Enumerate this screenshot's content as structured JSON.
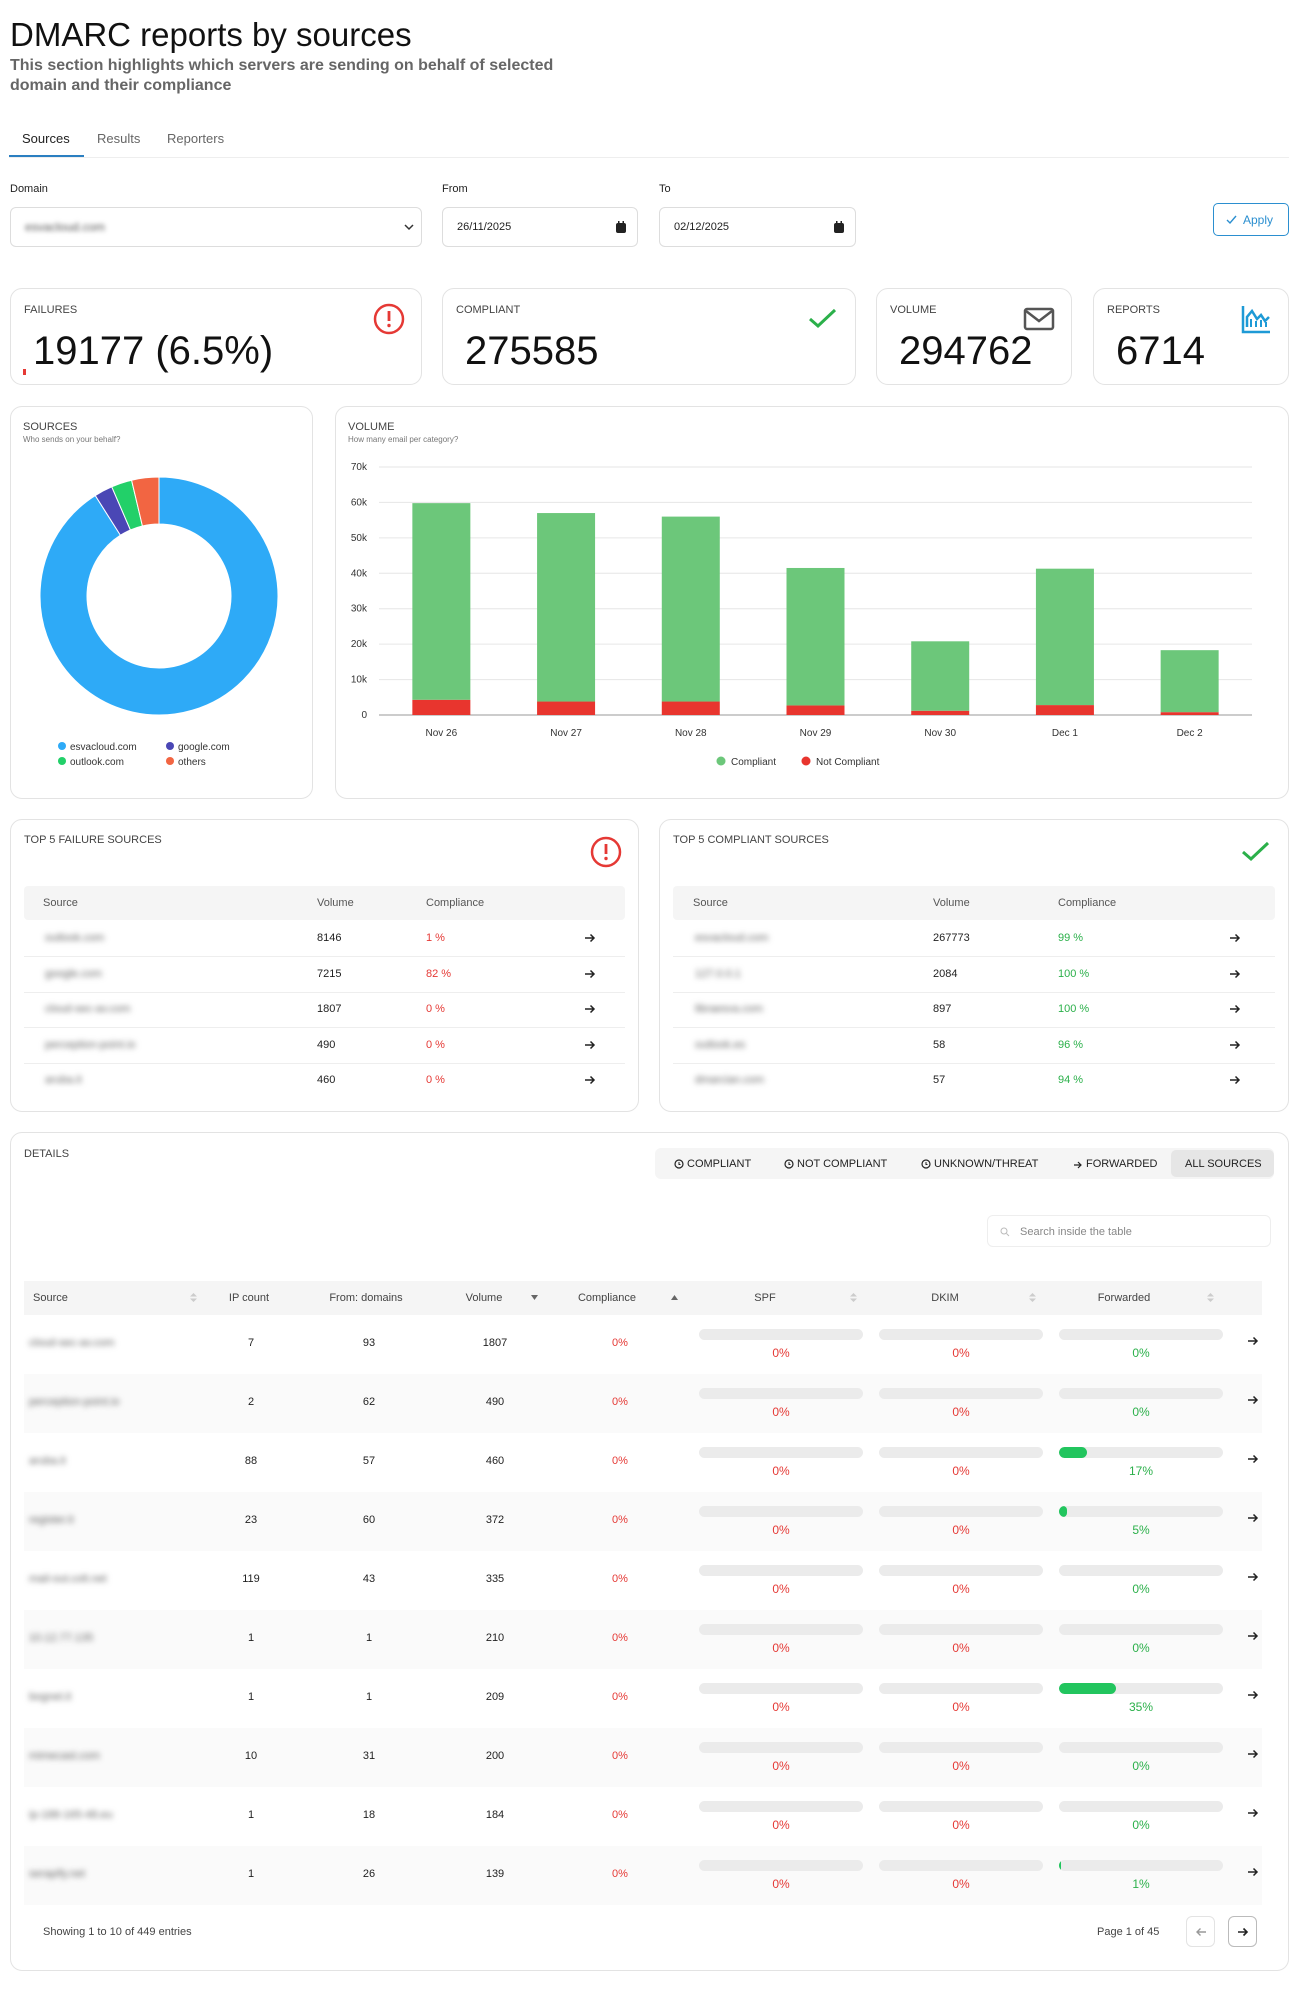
{
  "header": {
    "title": "DMARC reports by sources",
    "subtitle": "This section highlights which servers are sending on behalf of selected domain and their compliance"
  },
  "tabs": [
    "Sources",
    "Results",
    "Reporters"
  ],
  "filters": {
    "domain_label": "Domain",
    "domain": "esvacloud.com",
    "from_label": "From",
    "from": "26/11/2025",
    "to_label": "To",
    "to": "02/12/2025",
    "apply": "Apply"
  },
  "kpis": [
    {
      "label": "FAILURES",
      "value": "19177 (6.5%)"
    },
    {
      "label": "COMPLIANT",
      "value": "275585"
    },
    {
      "label": "VOLUME",
      "value": "294762"
    },
    {
      "label": "REPORTS",
      "value": "6714"
    }
  ],
  "chart_data": [
    {
      "type": "pie",
      "title": "SOURCES",
      "subtitle": "Who sends on your behalf?",
      "categories": [
        "esvacloud.com",
        "google.com",
        "outlook.com",
        "others"
      ],
      "values": [
        91,
        2.5,
        2.8,
        3.7
      ],
      "colors": [
        "#2eaaf7",
        "#4a47b5",
        "#22d069",
        "#f26542"
      ]
    },
    {
      "type": "bar",
      "stacked": true,
      "title": "VOLUME",
      "subtitle": "How many email per category?",
      "categories": [
        "Nov 26",
        "Nov 27",
        "Nov 28",
        "Nov 29",
        "Nov 30",
        "Dec 1",
        "Dec 2"
      ],
      "series": [
        {
          "name": "Compliant",
          "color": "#6cc77a",
          "values": [
            55500,
            53200,
            52200,
            38800,
            19600,
            38500,
            17500
          ]
        },
        {
          "name": "Not Compliant",
          "color": "#e8352e",
          "values": [
            4300,
            3800,
            3800,
            2700,
            1200,
            2800,
            800
          ]
        }
      ],
      "ylim": [
        0,
        70000
      ],
      "yticks": [
        0,
        {
          "value": 10000,
          "label": "10k"
        },
        {
          "value": 20000,
          "label": "20k"
        },
        {
          "value": 30000,
          "label": "30k"
        },
        {
          "value": 40000,
          "label": "40k"
        },
        {
          "value": 50000,
          "label": "50k"
        },
        {
          "value": 60000,
          "label": "60k"
        },
        {
          "value": 70000,
          "label": "70k"
        }
      ],
      "grid": true
    }
  ],
  "top_failures": {
    "title": "TOP 5 FAILURE SOURCES",
    "columns": [
      "Source",
      "Volume",
      "Compliance"
    ],
    "rows": [
      [
        "outlook.com",
        8146,
        "1 %"
      ],
      [
        "google.com",
        7215,
        "82 %"
      ],
      [
        "cloud-sec-av.com",
        1807,
        "0 %"
      ],
      [
        "perception-point.io",
        490,
        "0 %"
      ],
      [
        "aruba.it",
        460,
        "0 %"
      ]
    ]
  },
  "top_compliant": {
    "title": "TOP 5 COMPLIANT SOURCES",
    "columns": [
      "Source",
      "Volume",
      "Compliance"
    ],
    "rows": [
      [
        "esvacloud.com",
        267773,
        "99 %"
      ],
      [
        "127.0.0.1",
        2084,
        "100 %"
      ],
      [
        "libraesva.com",
        897,
        "100 %"
      ],
      [
        "outlook.es",
        58,
        "96 %"
      ],
      [
        "dmarcian.com",
        57,
        "94 %"
      ]
    ]
  },
  "details": {
    "title": "DETAILS",
    "filters": [
      "COMPLIANT",
      "NOT COMPLIANT",
      "UNKNOWN/THREAT",
      "FORWARDED",
      "ALL SOURCES"
    ],
    "search_placeholder": "Search inside the table",
    "columns": [
      "Source",
      "IP count",
      "From: domains",
      "Volume",
      "Compliance",
      "SPF",
      "DKIM",
      "Forwarded"
    ],
    "rows": [
      [
        "cloud-sec-av.com",
        7,
        93,
        1807,
        "0%",
        "0%",
        "0%",
        "0%"
      ],
      [
        "perception-point.io",
        2,
        62,
        490,
        "0%",
        "0%",
        "0%",
        "0%"
      ],
      [
        "aruba.it",
        88,
        57,
        460,
        "0%",
        "0%",
        "0%",
        "17%"
      ],
      [
        "register.it",
        23,
        60,
        372,
        "0%",
        "0%",
        "0%",
        "5%"
      ],
      [
        "mail-out.colt.net",
        119,
        43,
        335,
        "0%",
        "0%",
        "0%",
        "0%"
      ],
      [
        "10.12.77.135",
        1,
        1,
        210,
        "0%",
        "0%",
        "0%",
        "0%"
      ],
      [
        "bognet.it",
        1,
        1,
        209,
        "0%",
        "0%",
        "0%",
        "35%"
      ],
      [
        "mimecast.com",
        10,
        31,
        200,
        "0%",
        "0%",
        "0%",
        "0%"
      ],
      [
        "ip-188-165-48.eu",
        1,
        18,
        184,
        "0%",
        "0%",
        "0%",
        "0%"
      ],
      [
        "serapify.net",
        1,
        26,
        139,
        "0%",
        "0%",
        "0%",
        "1%"
      ]
    ],
    "footer": "Showing 1 to 10 of 449 entries",
    "page": "Page 1 of 45"
  }
}
